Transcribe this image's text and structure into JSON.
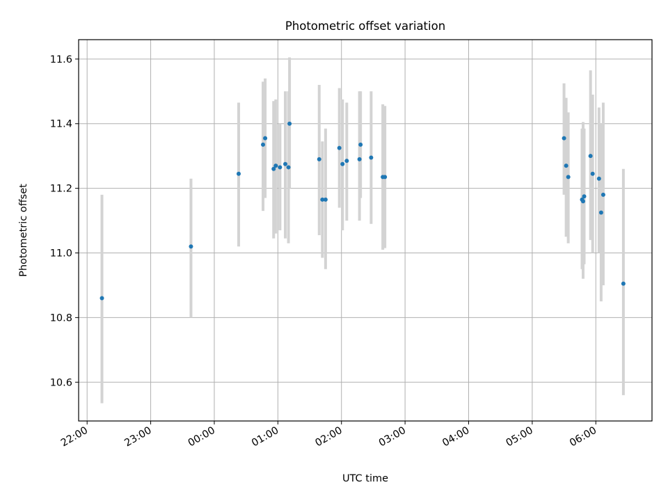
{
  "chart_data": {
    "type": "scatter",
    "title": "Photometric offset variation",
    "xlabel": "UTC time",
    "ylabel": "Photometric offset",
    "x_ticks": [
      "22:00",
      "23:00",
      "00:00",
      "01:00",
      "02:00",
      "03:00",
      "04:00",
      "05:00",
      "06:00"
    ],
    "y_ticks": [
      "10.6",
      "10.8",
      "11.0",
      "11.2",
      "11.4",
      "11.6"
    ],
    "xlim": [
      "21:52",
      "06:53"
    ],
    "ylim": [
      10.48,
      11.66
    ],
    "grid": true,
    "colors": {
      "point": "#1f77b4",
      "errorbar": "#d3d3d3",
      "grid": "#b0b0b0"
    },
    "points": [
      {
        "x": "22:14",
        "y": 10.86,
        "err_low": 10.535,
        "err_high": 11.18
      },
      {
        "x": "23:38",
        "y": 11.02,
        "err_low": 10.8,
        "err_high": 11.23
      },
      {
        "x": "00:23",
        "y": 11.245,
        "err_low": 11.02,
        "err_high": 11.465
      },
      {
        "x": "00:46",
        "y": 11.335,
        "err_low": 11.13,
        "err_high": 11.53
      },
      {
        "x": "00:48",
        "y": 11.355,
        "err_low": 11.17,
        "err_high": 11.54
      },
      {
        "x": "00:56",
        "y": 11.26,
        "err_low": 11.045,
        "err_high": 11.47
      },
      {
        "x": "00:58",
        "y": 11.27,
        "err_low": 11.06,
        "err_high": 11.475
      },
      {
        "x": "01:02",
        "y": 11.265,
        "err_low": 11.07,
        "err_high": 11.4
      },
      {
        "x": "01:07",
        "y": 11.275,
        "err_low": 11.045,
        "err_high": 11.5
      },
      {
        "x": "01:10",
        "y": 11.265,
        "err_low": 11.03,
        "err_high": 11.5
      },
      {
        "x": "01:11",
        "y": 11.4,
        "err_low": 11.2,
        "err_high": 11.605
      },
      {
        "x": "01:39",
        "y": 11.29,
        "err_low": 11.055,
        "err_high": 11.52
      },
      {
        "x": "01:42",
        "y": 11.165,
        "err_low": 10.985,
        "err_high": 11.345
      },
      {
        "x": "01:45",
        "y": 11.165,
        "err_low": 10.95,
        "err_high": 11.385
      },
      {
        "x": "01:58",
        "y": 11.325,
        "err_low": 11.14,
        "err_high": 11.51
      },
      {
        "x": "02:01",
        "y": 11.275,
        "err_low": 11.07,
        "err_high": 11.475
      },
      {
        "x": "02:05",
        "y": 11.285,
        "err_low": 11.1,
        "err_high": 11.465
      },
      {
        "x": "02:17",
        "y": 11.29,
        "err_low": 11.1,
        "err_high": 11.5
      },
      {
        "x": "02:18",
        "y": 11.335,
        "err_low": 11.17,
        "err_high": 11.5
      },
      {
        "x": "02:28",
        "y": 11.295,
        "err_low": 11.09,
        "err_high": 11.5
      },
      {
        "x": "02:39",
        "y": 11.235,
        "err_low": 11.01,
        "err_high": 11.46
      },
      {
        "x": "02:41",
        "y": 11.235,
        "err_low": 11.015,
        "err_high": 11.455
      },
      {
        "x": "05:30",
        "y": 11.355,
        "err_low": 11.18,
        "err_high": 11.525
      },
      {
        "x": "05:32",
        "y": 11.27,
        "err_low": 11.05,
        "err_high": 11.48
      },
      {
        "x": "05:34",
        "y": 11.235,
        "err_low": 11.03,
        "err_high": 11.435
      },
      {
        "x": "05:47",
        "y": 11.165,
        "err_low": 10.95,
        "err_high": 11.385
      },
      {
        "x": "05:48",
        "y": 11.16,
        "err_low": 10.92,
        "err_high": 11.405
      },
      {
        "x": "05:49",
        "y": 11.175,
        "err_low": 10.965,
        "err_high": 11.385
      },
      {
        "x": "05:55",
        "y": 11.3,
        "err_low": 11.04,
        "err_high": 11.565
      },
      {
        "x": "05:57",
        "y": 11.245,
        "err_low": 11.0,
        "err_high": 11.49
      },
      {
        "x": "06:03",
        "y": 11.23,
        "err_low": 11.0,
        "err_high": 11.45
      },
      {
        "x": "06:05",
        "y": 11.125,
        "err_low": 10.85,
        "err_high": 11.4
      },
      {
        "x": "06:07",
        "y": 11.18,
        "err_low": 10.9,
        "err_high": 11.465
      },
      {
        "x": "06:26",
        "y": 10.905,
        "err_low": 10.56,
        "err_high": 11.26
      }
    ]
  }
}
